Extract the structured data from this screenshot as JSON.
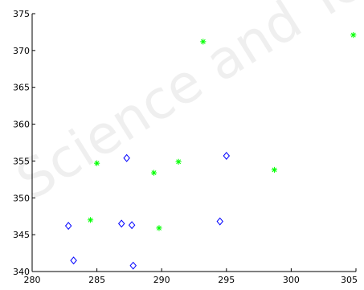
{
  "chart_data": {
    "type": "scatter",
    "xlim": [
      280,
      305
    ],
    "ylim": [
      340,
      375
    ],
    "x_ticks": [
      280,
      285,
      290,
      295,
      300,
      305
    ],
    "y_ticks": [
      340,
      345,
      350,
      355,
      360,
      365,
      370,
      375
    ],
    "grid": false,
    "watermark": "Science and Technology",
    "series": [
      {
        "marker": "asterisk",
        "color": "#00ff00",
        "points": [
          {
            "x": 284.5,
            "y": 347.0
          },
          {
            "x": 285.0,
            "y": 354.7
          },
          {
            "x": 289.4,
            "y": 353.4
          },
          {
            "x": 289.8,
            "y": 345.9
          },
          {
            "x": 291.3,
            "y": 354.9
          },
          {
            "x": 293.2,
            "y": 371.2
          },
          {
            "x": 298.7,
            "y": 353.8
          },
          {
            "x": 304.8,
            "y": 372.1
          }
        ]
      },
      {
        "marker": "diamond",
        "color": "#0000ff",
        "points": [
          {
            "x": 282.8,
            "y": 346.2
          },
          {
            "x": 283.2,
            "y": 341.5
          },
          {
            "x": 286.9,
            "y": 346.5
          },
          {
            "x": 287.3,
            "y": 355.4
          },
          {
            "x": 287.7,
            "y": 346.3
          },
          {
            "x": 287.8,
            "y": 340.8
          },
          {
            "x": 294.5,
            "y": 346.8
          },
          {
            "x": 295.0,
            "y": 355.7
          }
        ]
      }
    ]
  }
}
